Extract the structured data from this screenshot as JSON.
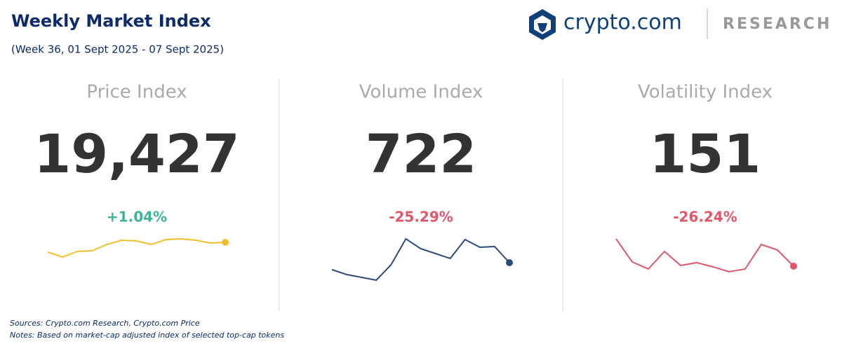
{
  "header": {
    "title": "Weekly Market Index",
    "subtitle": "(Week 36, 01 Sept 2025 - 07 Sept 2025)"
  },
  "brand": {
    "name": "crypto.com",
    "section": "RESEARCH"
  },
  "cards": [
    {
      "label": "Price Index",
      "value": "19,427",
      "change": "+1.04%",
      "change_color": "#3bb597",
      "spark_color": "#f3bf2d",
      "spark": [
        40,
        33,
        41,
        42,
        51,
        57,
        56,
        51,
        58,
        59,
        57,
        53,
        54
      ]
    },
    {
      "label": "Volume Index",
      "value": "722",
      "change": "-25.29%",
      "change_color": "#e0566b",
      "spark_color": "#2b4a7e",
      "spark": [
        15,
        8,
        4,
        0,
        22,
        59,
        45,
        38,
        31,
        58,
        47,
        48,
        25
      ]
    },
    {
      "label": "Volatility Index",
      "value": "151",
      "change": "-26.24%",
      "change_color": "#e0566b",
      "spark_color": "#e0566b",
      "spark": [
        59,
        26,
        16,
        41,
        21,
        25,
        19,
        12,
        16,
        51,
        43,
        20
      ]
    }
  ],
  "footer": {
    "sources": "Sources: Crypto.com Research,  Crypto.com Price",
    "notes": "Notes: Based on market-cap adjusted index of selected top-cap tokens"
  }
}
